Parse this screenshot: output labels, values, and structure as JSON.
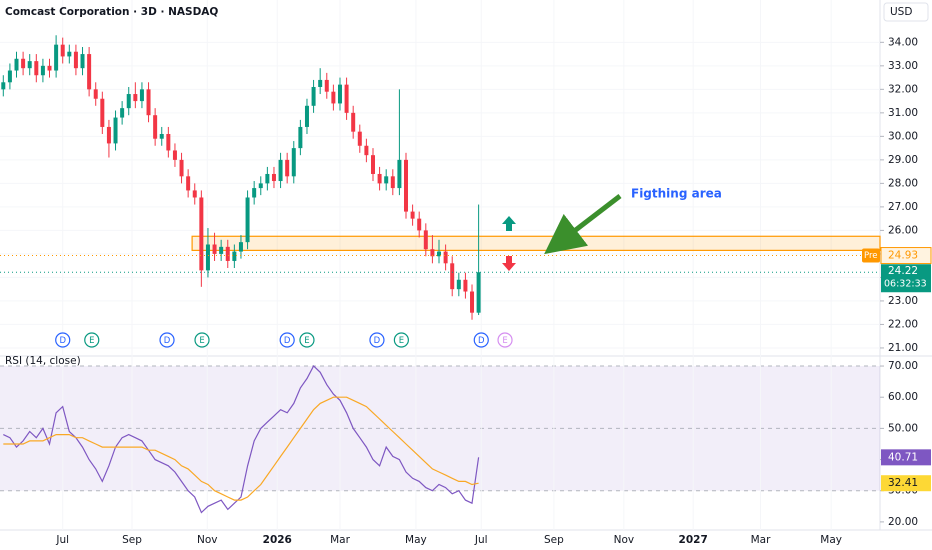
{
  "header": {
    "title": "Comcast Corporation · 3D · NASDAQ",
    "currency": "USD"
  },
  "chart_data": [
    {
      "type": "candlestick",
      "annotation": "Figthing area",
      "xlim": [
        -0.5,
        132.8
      ],
      "ylim": [
        20.7,
        35.8
      ],
      "yticks": [
        {
          "value": 21,
          "label": "21.00"
        },
        {
          "value": 22,
          "label": "22.00"
        },
        {
          "value": 23,
          "label": "23.00"
        },
        {
          "value": 24,
          "label": "24.00"
        },
        {
          "value": 25,
          "label": "25.00"
        },
        {
          "value": 26,
          "label": "26.00"
        },
        {
          "value": 27,
          "label": "27.00"
        },
        {
          "value": 28,
          "label": "28.00"
        },
        {
          "value": 29,
          "label": "29.00"
        },
        {
          "value": 30,
          "label": "30.00"
        },
        {
          "value": 31,
          "label": "31.00"
        },
        {
          "value": 32,
          "label": "32.00"
        },
        {
          "value": 33,
          "label": "33.00"
        },
        {
          "value": 34,
          "label": "34.00"
        }
      ],
      "up_color": "#089981",
      "down_color": "#f23645",
      "open": [
        32.0,
        32.3,
        32.8,
        33.3,
        32.9,
        33.2,
        32.6,
        33.0,
        32.8,
        33.9,
        33.4,
        33.6,
        32.9,
        33.5,
        32.0,
        31.6,
        30.4,
        29.7,
        30.8,
        31.2,
        31.8,
        31.5,
        32.0,
        30.9,
        29.9,
        30.1,
        29.4,
        29.0,
        28.3,
        27.7,
        27.4,
        24.3,
        25.4,
        25.0,
        25.3,
        24.7,
        25.1,
        25.5,
        27.4,
        27.8,
        28.0,
        28.4,
        28.1,
        29.0,
        28.3,
        29.5,
        30.4,
        31.3,
        32.1,
        32.4,
        31.9,
        31.4,
        32.2,
        31.0,
        30.2,
        29.6,
        29.2,
        28.4,
        28.0,
        28.3,
        27.8,
        29.0,
        26.8,
        26.5,
        26.0,
        25.2,
        24.9,
        25.1,
        24.6,
        23.5,
        23.9,
        23.4,
        22.5
      ],
      "high": [
        32.6,
        33.1,
        33.6,
        33.6,
        33.5,
        33.5,
        33.3,
        33.3,
        34.3,
        34.2,
        33.9,
        33.9,
        33.8,
        33.8,
        32.3,
        31.9,
        30.7,
        31.1,
        31.5,
        32.1,
        32.3,
        32.3,
        32.3,
        31.2,
        30.4,
        30.4,
        29.7,
        29.3,
        28.6,
        28.0,
        27.7,
        26.1,
        25.9,
        25.6,
        25.6,
        25.4,
        25.8,
        27.7,
        28.1,
        28.3,
        28.7,
        28.7,
        29.3,
        29.3,
        29.8,
        30.7,
        31.6,
        32.4,
        32.9,
        32.7,
        32.2,
        32.5,
        32.5,
        31.3,
        30.5,
        29.9,
        29.5,
        28.7,
        28.6,
        28.6,
        32.0,
        29.3,
        27.1,
        26.8,
        26.3,
        25.8,
        25.6,
        25.4,
        24.9,
        24.2,
        24.2,
        23.7,
        27.1
      ],
      "low": [
        31.7,
        32.0,
        32.5,
        32.6,
        32.6,
        32.3,
        32.3,
        32.5,
        32.5,
        33.1,
        33.1,
        32.6,
        32.6,
        31.7,
        31.3,
        30.1,
        29.1,
        29.4,
        30.5,
        30.9,
        31.2,
        31.2,
        30.6,
        29.6,
        29.6,
        29.1,
        28.7,
        28.0,
        27.4,
        27.1,
        23.6,
        24.0,
        24.7,
        24.7,
        24.4,
        24.4,
        24.8,
        25.2,
        27.1,
        27.5,
        27.7,
        27.8,
        27.8,
        28.0,
        28.0,
        29.2,
        30.1,
        31.0,
        31.8,
        31.6,
        31.1,
        31.1,
        30.7,
        29.9,
        29.3,
        28.9,
        28.1,
        27.7,
        27.7,
        27.5,
        27.5,
        26.5,
        26.2,
        25.7,
        24.9,
        24.6,
        24.6,
        24.3,
        23.2,
        23.2,
        23.1,
        22.2,
        22.4
      ],
      "close": [
        32.3,
        32.8,
        33.3,
        32.9,
        33.2,
        32.6,
        33.0,
        32.8,
        33.9,
        33.4,
        33.6,
        32.9,
        33.5,
        32.0,
        31.6,
        30.4,
        29.7,
        30.8,
        31.2,
        31.8,
        31.5,
        32.0,
        30.9,
        29.9,
        30.1,
        29.4,
        29.0,
        28.3,
        27.7,
        27.4,
        24.3,
        25.4,
        25.0,
        25.3,
        24.7,
        25.1,
        25.5,
        27.4,
        27.8,
        28.0,
        28.4,
        28.1,
        29.0,
        28.3,
        29.5,
        30.4,
        31.3,
        32.1,
        32.4,
        31.9,
        31.4,
        32.2,
        31.0,
        30.2,
        29.6,
        29.2,
        28.4,
        28.0,
        28.3,
        27.8,
        29.0,
        26.8,
        26.5,
        26.0,
        25.2,
        24.9,
        25.1,
        24.6,
        23.5,
        23.9,
        23.4,
        22.5,
        24.22
      ],
      "pre": {
        "label": "Pre",
        "value": 24.93,
        "color": "#ff9800"
      },
      "countdown": "06:32:33",
      "zone": {
        "x": 28.6,
        "low": 25.15,
        "high": 25.75,
        "color": "#ff9800"
      },
      "events": [
        {
          "x": 9.0,
          "label": "D"
        },
        {
          "x": 13.4,
          "label": "E"
        },
        {
          "x": 24.8,
          "label": "D"
        },
        {
          "x": 30.1,
          "label": "E"
        },
        {
          "x": 43.0,
          "label": "D"
        },
        {
          "x": 46.0,
          "label": "E"
        },
        {
          "x": 56.6,
          "label": "D"
        },
        {
          "x": 60.3,
          "label": "E"
        },
        {
          "x": 72.4,
          "label": "D"
        },
        {
          "x": 76.0,
          "label": "E"
        }
      ]
    },
    {
      "type": "line",
      "title": "RSI (14, close)",
      "xlim": [
        -0.5,
        132.8
      ],
      "ylim": [
        17.4,
        72.9
      ],
      "yticks": [
        {
          "value": 20,
          "label": "20.00"
        },
        {
          "value": 30,
          "label": "30.00"
        },
        {
          "value": 40,
          "label": "40.00"
        },
        {
          "value": 50,
          "label": "50.00"
        },
        {
          "value": 60,
          "label": "60.00"
        },
        {
          "value": 70,
          "label": "70.00"
        }
      ],
      "xticks": [
        {
          "value": 9.0,
          "label": "Jul"
        },
        {
          "value": 19.5,
          "label": "Sep"
        },
        {
          "value": 30.9,
          "label": "Nov"
        },
        {
          "value": 41.5,
          "label": "2026"
        },
        {
          "value": 51.0,
          "label": "Mar"
        },
        {
          "value": 62.5,
          "label": "May"
        },
        {
          "value": 72.4,
          "label": "Jul"
        },
        {
          "value": 83.4,
          "label": "Sep"
        },
        {
          "value": 94.0,
          "label": "Nov"
        },
        {
          "value": 104.5,
          "label": "2027"
        },
        {
          "value": 114.7,
          "label": "Mar"
        },
        {
          "value": 125.4,
          "label": "May"
        }
      ],
      "band": [
        30,
        70
      ],
      "levels": [
        70,
        50,
        30
      ],
      "series": [
        {
          "color": "#7e57c2",
          "values": [
            48,
            47,
            44,
            46,
            49,
            47,
            50,
            45,
            55,
            57,
            49,
            47,
            44,
            40,
            37,
            33,
            38,
            44,
            47,
            48,
            47,
            46,
            43,
            40,
            39,
            38,
            36,
            33,
            30,
            28,
            23,
            25,
            26,
            27,
            24,
            26,
            28,
            38,
            46,
            50,
            52,
            54,
            56,
            55,
            58,
            63,
            66,
            70,
            68,
            64,
            61,
            59,
            55,
            50,
            47,
            44,
            40,
            38,
            44,
            41,
            40,
            36,
            34,
            33,
            31,
            30,
            32,
            31,
            29,
            30,
            27,
            26,
            40.71
          ]
        },
        {
          "color": "#f9a825",
          "label_color": "#fdd835",
          "values": [
            45,
            45,
            45,
            45,
            46,
            46,
            46,
            47,
            48,
            48,
            48,
            47,
            47,
            46,
            45,
            44,
            44,
            44,
            44,
            44,
            44,
            44,
            43,
            43,
            42,
            41,
            40,
            38,
            37,
            35,
            33,
            32,
            30,
            29,
            28,
            27,
            27,
            28,
            30,
            32,
            35,
            38,
            41,
            44,
            47,
            50,
            53,
            56,
            58,
            59,
            60,
            60,
            60,
            59,
            58,
            57,
            55,
            53,
            51,
            49,
            47,
            45,
            43,
            41,
            39,
            37,
            36,
            35,
            34,
            33,
            33,
            32,
            32.41
          ]
        }
      ]
    }
  ]
}
